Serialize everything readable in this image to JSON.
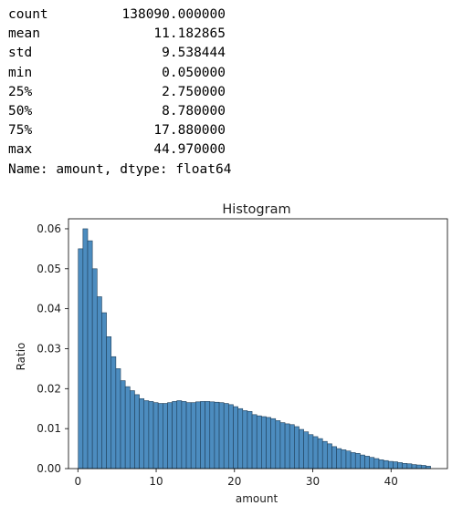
{
  "describe": {
    "rows": [
      {
        "key": "count",
        "value": "138090.000000"
      },
      {
        "key": "mean",
        "value": "11.182865"
      },
      {
        "key": "std",
        "value": "9.538444"
      },
      {
        "key": "min",
        "value": "0.050000"
      },
      {
        "key": "25%",
        "value": "2.750000"
      },
      {
        "key": "50%",
        "value": "8.780000"
      },
      {
        "key": "75%",
        "value": "17.880000"
      },
      {
        "key": "max",
        "value": "44.970000"
      }
    ],
    "footer": "Name: amount, dtype: float64"
  },
  "chart_data": {
    "type": "bar",
    "title": "Histogram",
    "xlabel": "amount",
    "ylabel": "Ratio",
    "xlim": [
      -1.2,
      47.2
    ],
    "ylim": [
      0,
      0.0625
    ],
    "xticks": [
      0,
      10,
      20,
      30,
      40
    ],
    "yticks": [
      0.0,
      0.01,
      0.02,
      0.03,
      0.04,
      0.05,
      0.06
    ],
    "grid": false,
    "bar_color": "#4c8cbf",
    "bar_edge_color": "#1f3f5a",
    "bin_start": 0.05,
    "bin_width": 0.6,
    "values": [
      0.055,
      0.06,
      0.057,
      0.05,
      0.043,
      0.039,
      0.033,
      0.028,
      0.025,
      0.022,
      0.0205,
      0.0195,
      0.0185,
      0.0175,
      0.017,
      0.0168,
      0.0165,
      0.0163,
      0.0163,
      0.0165,
      0.0168,
      0.017,
      0.0168,
      0.0165,
      0.0165,
      0.0167,
      0.0168,
      0.0168,
      0.0167,
      0.0166,
      0.0165,
      0.0163,
      0.016,
      0.0155,
      0.015,
      0.0145,
      0.0143,
      0.0135,
      0.0132,
      0.013,
      0.0128,
      0.0125,
      0.012,
      0.0115,
      0.0112,
      0.011,
      0.0105,
      0.0098,
      0.0092,
      0.0085,
      0.008,
      0.0075,
      0.0068,
      0.0062,
      0.0055,
      0.005,
      0.0047,
      0.0044,
      0.004,
      0.0038,
      0.0034,
      0.0031,
      0.0028,
      0.0025,
      0.0022,
      0.002,
      0.0018,
      0.0017,
      0.0015,
      0.0013,
      0.0012,
      0.001,
      0.0009,
      0.0008,
      0.0006
    ]
  }
}
